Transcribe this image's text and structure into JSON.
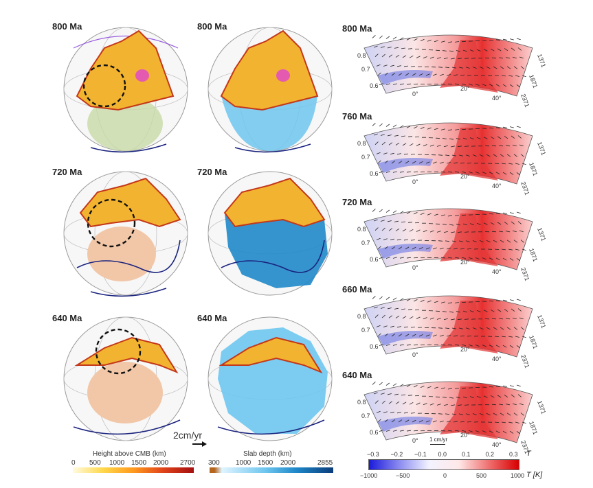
{
  "globes": {
    "rows": [
      {
        "left_label": "800 Ma",
        "right_label": "800 Ma"
      },
      {
        "left_label": "720 Ma",
        "right_label": "720 Ma"
      },
      {
        "left_label": "640 Ma",
        "right_label": "640 Ma"
      }
    ],
    "velocity_scale": "2cm/yr"
  },
  "sections": {
    "panels": [
      {
        "label": "800 Ma"
      },
      {
        "label": "760 Ma"
      },
      {
        "label": "720 Ma"
      },
      {
        "label": "660 Ma"
      },
      {
        "label": "640 Ma"
      }
    ],
    "radius_ticks": [
      "0.8",
      "0.7",
      "0.6"
    ],
    "angle_ticks": [
      "0°",
      "20°",
      "40°"
    ],
    "depth_ticks": [
      "1371",
      "1871",
      "2371"
    ],
    "velocity_scale": "1 cm/yr"
  },
  "colorbars": {
    "height": {
      "title": "Height above CMB (km)",
      "ticks": [
        "0",
        "500",
        "1000",
        "1500",
        "2000",
        "2700"
      ],
      "colors": [
        "#fffbe0",
        "#ffd84a",
        "#ff9a1f",
        "#e0421a",
        "#a50f0f"
      ]
    },
    "slab": {
      "title": "Slab depth (km)",
      "ticks": [
        "300",
        "1000",
        "1500",
        "2000",
        "2855"
      ],
      "colors": [
        "#b5651d",
        "#e0f4ff",
        "#6ec6ef",
        "#1f88c9",
        "#0a3c7a"
      ]
    },
    "temperature": {
      "top_ticks": [
        "−0.3",
        "−0.2",
        "−0.1",
        "0.0",
        "0.1",
        "0.2",
        "0.3"
      ],
      "top_symbol": "T",
      "bottom_ticks": [
        "−1000",
        "−500",
        "0",
        "500",
        "1000"
      ],
      "bottom_symbol": "T [K]",
      "colors": [
        "#1a1adb",
        "#8a8af0",
        "#f2f2ff",
        "#ffe8e8",
        "#f07070",
        "#d80000"
      ]
    }
  }
}
